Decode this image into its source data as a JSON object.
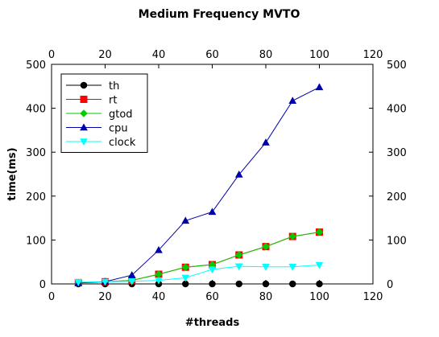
{
  "chart_data": {
    "type": "line",
    "title": "Medium Frequency MVTO",
    "xlabel": "#threads",
    "ylabel": "time(ms)",
    "xlim": [
      0,
      120
    ],
    "ylim": [
      0,
      500
    ],
    "xticks": [
      0,
      20,
      40,
      60,
      80,
      100,
      120
    ],
    "yticks": [
      0,
      100,
      200,
      300,
      400,
      500
    ],
    "grid": false,
    "legend_position": "top-left",
    "x": [
      10,
      20,
      30,
      40,
      50,
      60,
      70,
      80,
      90,
      100
    ],
    "series": [
      {
        "name": "th",
        "color": "#000000",
        "marker": "circle",
        "values": [
          0,
          0,
          0,
          0,
          0,
          0,
          0,
          0,
          0,
          0
        ]
      },
      {
        "name": "rt",
        "color": "#ff0000",
        "marker": "square",
        "values": [
          3,
          5,
          8,
          22,
          38,
          44,
          66,
          85,
          108,
          118
        ]
      },
      {
        "name": "gtod",
        "color": "#00cc00",
        "marker": "diamond",
        "values": [
          3,
          5,
          8,
          22,
          38,
          44,
          66,
          85,
          108,
          118
        ]
      },
      {
        "name": "cpu",
        "color": "#0000aa",
        "marker": "triangle-up",
        "values": [
          2,
          5,
          20,
          77,
          144,
          164,
          249,
          322,
          417,
          448
        ]
      },
      {
        "name": "clock",
        "color": "#00ffff",
        "marker": "triangle-down",
        "values": [
          4,
          5,
          6,
          8,
          14,
          33,
          40,
          39,
          39,
          43
        ]
      }
    ]
  }
}
